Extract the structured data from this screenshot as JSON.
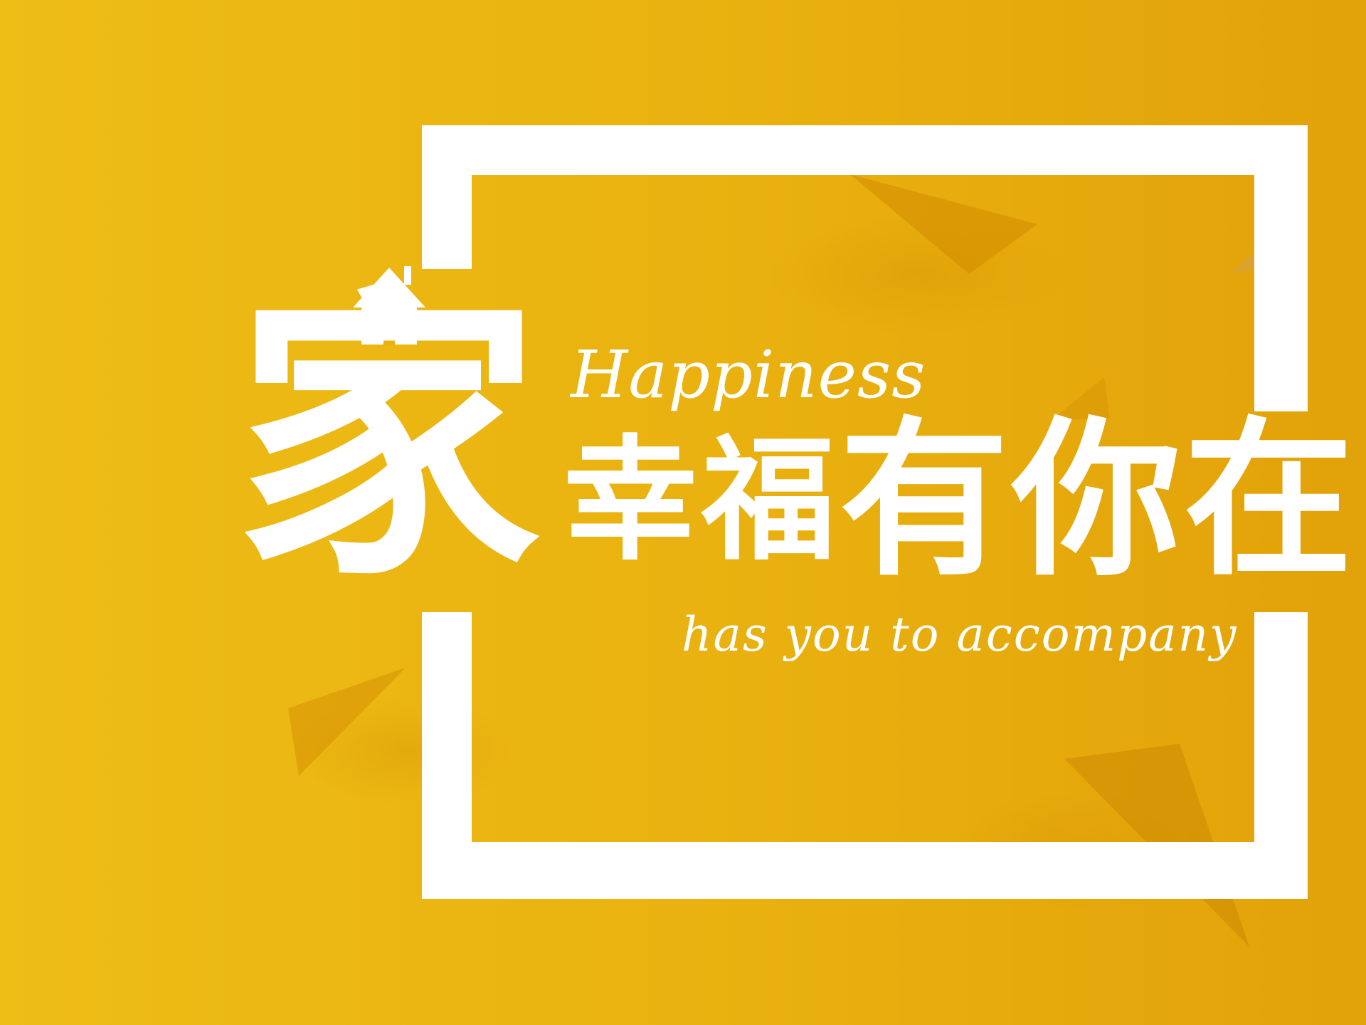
{
  "banner": {
    "main_character": "家",
    "headline_small": "幸福",
    "headline_large": "有你在",
    "script_top": "Happiness",
    "script_bottom": "has you to accompany"
  },
  "colors": {
    "background_left": "#eebd16",
    "background_right": "#e2a209",
    "foreground": "#ffffff",
    "triangle_shade": "#d28a00"
  },
  "icons": {
    "house": "house-icon"
  }
}
